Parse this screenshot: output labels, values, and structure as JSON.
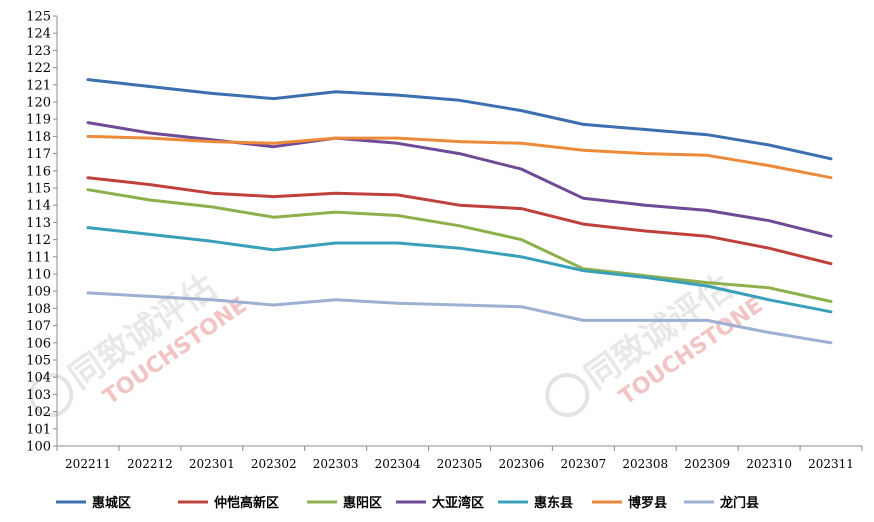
{
  "chart_data": {
    "type": "line",
    "title": "",
    "xlabel": "",
    "ylabel": "",
    "ylim": [
      100,
      125
    ],
    "ytick_step": 1,
    "grid": false,
    "legend_position": "bottom",
    "categories": [
      "202211",
      "202212",
      "202301",
      "202302",
      "202303",
      "202304",
      "202305",
      "202306",
      "202307",
      "202308",
      "202309",
      "202310",
      "202311"
    ],
    "series": [
      {
        "name": "惠城区",
        "color": "#3d6fb0",
        "values": [
          121.3,
          120.9,
          120.5,
          120.2,
          120.6,
          120.4,
          120.1,
          119.5,
          118.7,
          118.4,
          118.1,
          117.5,
          116.7
        ]
      },
      {
        "name": "仲恺高新区",
        "color": "#c0413c",
        "values": [
          115.6,
          115.2,
          114.7,
          114.5,
          114.7,
          114.6,
          114.0,
          113.8,
          112.9,
          112.5,
          112.2,
          111.5,
          110.6
        ]
      },
      {
        "name": "惠阳区",
        "color": "#8db04c",
        "values": [
          114.9,
          114.3,
          113.9,
          113.3,
          113.6,
          113.4,
          112.8,
          112.0,
          110.3,
          109.9,
          109.5,
          109.2,
          108.4
        ]
      },
      {
        "name": "大亚湾区",
        "color": "#6e4b96",
        "values": [
          118.8,
          118.2,
          117.8,
          117.4,
          117.9,
          117.6,
          117.0,
          116.1,
          114.4,
          114.0,
          113.7,
          113.1,
          112.2
        ]
      },
      {
        "name": "惠东县",
        "color": "#3aa0b9",
        "values": [
          112.7,
          112.3,
          111.9,
          111.4,
          111.8,
          111.8,
          111.5,
          111.0,
          110.2,
          109.8,
          109.3,
          108.5,
          107.8
        ]
      },
      {
        "name": "博罗县",
        "color": "#ec8a3a",
        "values": [
          118.0,
          117.9,
          117.7,
          117.6,
          117.9,
          117.9,
          117.7,
          117.6,
          117.2,
          117.0,
          116.9,
          116.3,
          115.6
        ]
      },
      {
        "name": "龙门县",
        "color": "#9db0d4",
        "values": [
          108.9,
          108.7,
          108.5,
          108.2,
          108.5,
          108.3,
          108.2,
          108.1,
          107.3,
          107.3,
          107.3,
          106.6,
          106.0
        ]
      }
    ]
  },
  "watermark": {
    "cn": "同致诚评估",
    "en": "TOUCHSTONE",
    "small": "TOUCHSTONE"
  }
}
